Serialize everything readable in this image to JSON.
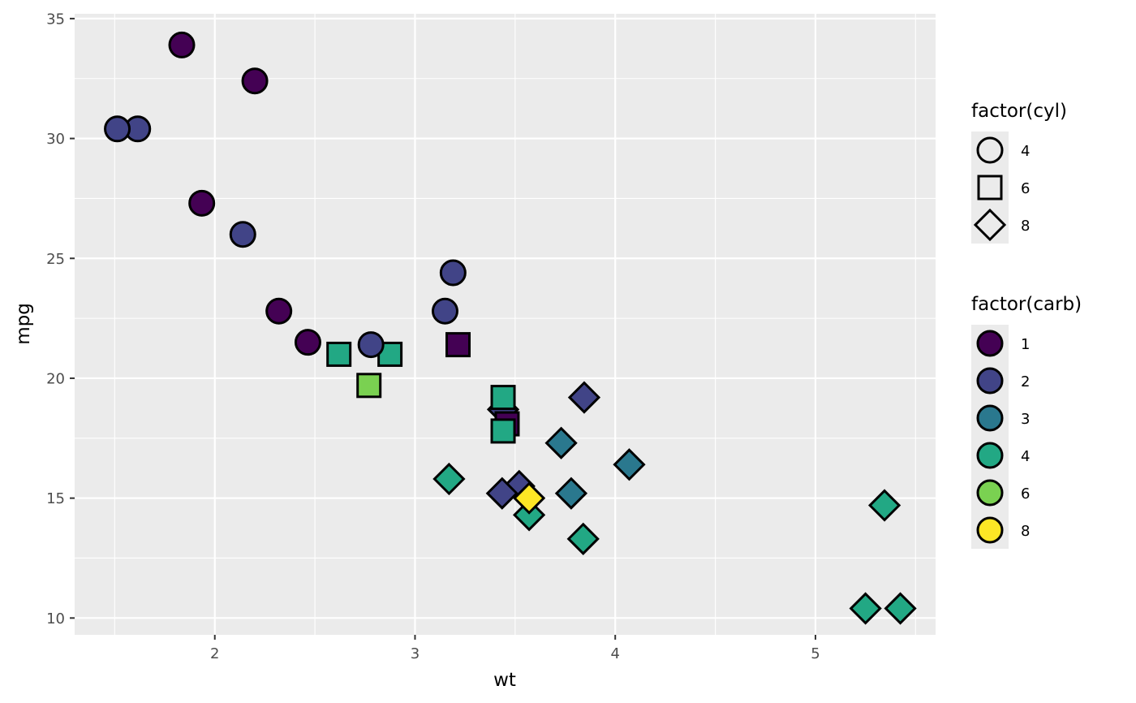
{
  "chart_data": {
    "type": "scatter",
    "title": "",
    "xlabel": "wt",
    "ylabel": "mpg",
    "xlim": [
      1.3,
      5.6
    ],
    "ylim": [
      9.3,
      35.2
    ],
    "x_ticks": [
      2,
      3,
      4,
      5
    ],
    "y_ticks": [
      10,
      15,
      20,
      25,
      30,
      35
    ],
    "grid": true,
    "legend_position": "right",
    "shape_legend": {
      "title": "factor(cyl)",
      "entries": [
        {
          "label": "4",
          "shape": "circle"
        },
        {
          "label": "6",
          "shape": "square"
        },
        {
          "label": "8",
          "shape": "diamond"
        }
      ]
    },
    "color_legend": {
      "title": "factor(carb)",
      "entries": [
        {
          "label": "1",
          "color": "#440154"
        },
        {
          "label": "2",
          "color": "#414487"
        },
        {
          "label": "3",
          "color": "#2A788E"
        },
        {
          "label": "4",
          "color": "#22A884"
        },
        {
          "label": "6",
          "color": "#7AD151"
        },
        {
          "label": "8",
          "color": "#FDE725"
        }
      ]
    },
    "points": [
      {
        "x": 2.62,
        "y": 21.0,
        "cyl": "6",
        "carb": "4"
      },
      {
        "x": 2.875,
        "y": 21.0,
        "cyl": "6",
        "carb": "4"
      },
      {
        "x": 2.32,
        "y": 22.8,
        "cyl": "4",
        "carb": "1"
      },
      {
        "x": 3.215,
        "y": 21.4,
        "cyl": "6",
        "carb": "1"
      },
      {
        "x": 3.44,
        "y": 18.7,
        "cyl": "8",
        "carb": "2"
      },
      {
        "x": 3.46,
        "y": 18.1,
        "cyl": "6",
        "carb": "1"
      },
      {
        "x": 3.57,
        "y": 14.3,
        "cyl": "8",
        "carb": "4"
      },
      {
        "x": 3.19,
        "y": 24.4,
        "cyl": "4",
        "carb": "2"
      },
      {
        "x": 3.15,
        "y": 22.8,
        "cyl": "4",
        "carb": "2"
      },
      {
        "x": 3.44,
        "y": 19.2,
        "cyl": "6",
        "carb": "4"
      },
      {
        "x": 3.44,
        "y": 17.8,
        "cyl": "6",
        "carb": "4"
      },
      {
        "x": 4.07,
        "y": 16.4,
        "cyl": "8",
        "carb": "3"
      },
      {
        "x": 3.73,
        "y": 17.3,
        "cyl": "8",
        "carb": "3"
      },
      {
        "x": 3.78,
        "y": 15.2,
        "cyl": "8",
        "carb": "3"
      },
      {
        "x": 5.25,
        "y": 10.4,
        "cyl": "8",
        "carb": "4"
      },
      {
        "x": 5.424,
        "y": 10.4,
        "cyl": "8",
        "carb": "4"
      },
      {
        "x": 5.345,
        "y": 14.7,
        "cyl": "8",
        "carb": "4"
      },
      {
        "x": 2.2,
        "y": 32.4,
        "cyl": "4",
        "carb": "1"
      },
      {
        "x": 1.615,
        "y": 30.4,
        "cyl": "4",
        "carb": "2"
      },
      {
        "x": 1.835,
        "y": 33.9,
        "cyl": "4",
        "carb": "1"
      },
      {
        "x": 2.465,
        "y": 21.5,
        "cyl": "4",
        "carb": "1"
      },
      {
        "x": 3.52,
        "y": 15.5,
        "cyl": "8",
        "carb": "2"
      },
      {
        "x": 3.435,
        "y": 15.2,
        "cyl": "8",
        "carb": "2"
      },
      {
        "x": 3.84,
        "y": 13.3,
        "cyl": "8",
        "carb": "4"
      },
      {
        "x": 3.845,
        "y": 19.2,
        "cyl": "8",
        "carb": "2"
      },
      {
        "x": 1.935,
        "y": 27.3,
        "cyl": "4",
        "carb": "1"
      },
      {
        "x": 2.14,
        "y": 26.0,
        "cyl": "4",
        "carb": "2"
      },
      {
        "x": 1.513,
        "y": 30.4,
        "cyl": "4",
        "carb": "2"
      },
      {
        "x": 3.17,
        "y": 15.8,
        "cyl": "8",
        "carb": "4"
      },
      {
        "x": 2.77,
        "y": 19.7,
        "cyl": "6",
        "carb": "6"
      },
      {
        "x": 3.57,
        "y": 15.0,
        "cyl": "8",
        "carb": "8"
      },
      {
        "x": 2.78,
        "y": 21.4,
        "cyl": "4",
        "carb": "2"
      }
    ]
  }
}
